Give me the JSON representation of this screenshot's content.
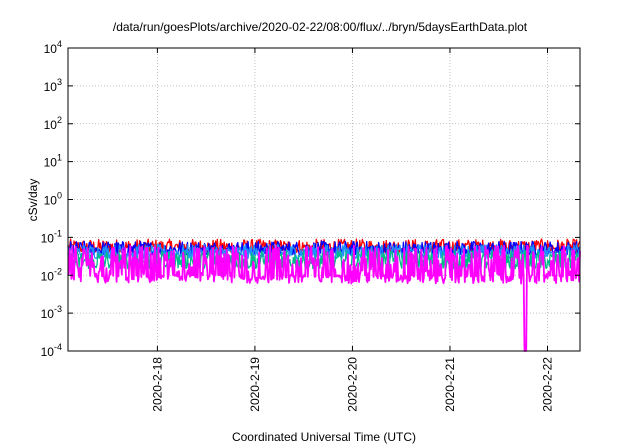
{
  "chart_data": {
    "type": "line",
    "title": "/data/run/goesPlots/archive/2020-02-22/08:00/flux/../bryn/5daysEarthData.plot",
    "xlabel": "Coordinated Universal Time (UTC)",
    "ylabel": "cSv/day",
    "yscale": "log",
    "ylim": [
      0.0001,
      10000
    ],
    "xlim": [
      "2020-02-17T02:00",
      "2020-02-22T08:00"
    ],
    "grid": true,
    "y_ticks": [
      {
        "value": 0.0001,
        "base": "10",
        "exp": "-4"
      },
      {
        "value": 0.001,
        "base": "10",
        "exp": "-3"
      },
      {
        "value": 0.01,
        "base": "10",
        "exp": "-2"
      },
      {
        "value": 0.1,
        "base": "10",
        "exp": "-1"
      },
      {
        "value": 1,
        "base": "10",
        "exp": "0"
      },
      {
        "value": 10,
        "base": "10",
        "exp": "1"
      },
      {
        "value": 100,
        "base": "10",
        "exp": "2"
      },
      {
        "value": 1000,
        "base": "10",
        "exp": "3"
      },
      {
        "value": 10000,
        "base": "10",
        "exp": "4"
      }
    ],
    "x_ticks": [
      {
        "value": "2020-02-18T00:00",
        "label": "2020-2-18"
      },
      {
        "value": "2020-02-19T00:00",
        "label": "2020-2-19"
      },
      {
        "value": "2020-02-20T00:00",
        "label": "2020-2-20"
      },
      {
        "value": "2020-02-21T00:00",
        "label": "2020-2-21"
      },
      {
        "value": "2020-02-22T00:00",
        "label": "2020-2-22"
      }
    ],
    "series": [
      {
        "color": "#ff0000",
        "level": 0.055,
        "low": 0.04,
        "high": 0.09
      },
      {
        "color": "#0000ff",
        "level": 0.05,
        "low": 0.035,
        "high": 0.08
      },
      {
        "color": "#1e90ff",
        "level": 0.042,
        "low": 0.028,
        "high": 0.065
      },
      {
        "color": "#00bb88",
        "level": 0.03,
        "low": 0.015,
        "high": 0.045
      },
      {
        "color": "#ff00ff",
        "level": 0.009,
        "low": 0.006,
        "high": 0.06,
        "dropout": {
          "x": "2020-02-21T18:30",
          "y": 0.0001
        }
      }
    ]
  }
}
